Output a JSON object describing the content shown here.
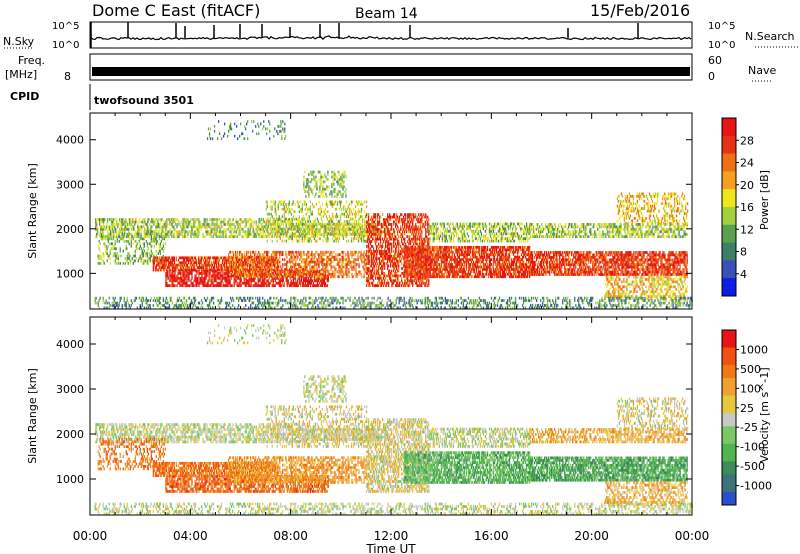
{
  "header": {
    "station": "Dome C East (fitACF)",
    "beam": "Beam 14",
    "date": "15/Feb/2016"
  },
  "noise_panel": {
    "label_left": "N.Sky",
    "label_right": "N.Search",
    "ticks_left": [
      "10^5",
      "10^0"
    ],
    "ticks_right": [
      "10^5",
      "10^0"
    ]
  },
  "freq_panel": {
    "label_line1": "Freq.",
    "label_line2": "[MHz]",
    "tick_left": "8",
    "ticks_right": [
      "60",
      "0"
    ],
    "label_right": "Nave"
  },
  "cpid": {
    "label": "CPID",
    "value": "twofsound 3501"
  },
  "colors": {
    "power": [
      "#0a1ee6",
      "#3a4fb8",
      "#3c7f67",
      "#5aa050",
      "#a0d23c",
      "#f0e61e",
      "#f5a020",
      "#f06e14",
      "#e63214",
      "#e61414"
    ],
    "velocity": [
      "#2850c8",
      "#3c7378",
      "#3c8c5a",
      "#50b450",
      "#78c864",
      "#c8c8c8",
      "#e6c83c",
      "#f0a032",
      "#f07814",
      "#f05014",
      "#e61414"
    ]
  },
  "chart_data": [
    {
      "type": "heatmap",
      "name": "power-panel",
      "xlabel": "Time UT",
      "ylabel": "Slant Range [km]",
      "xlim_hours": [
        0,
        24
      ],
      "ylim_km": [
        200,
        4600
      ],
      "yticks": [
        "1000",
        "2000",
        "3000",
        "4000"
      ],
      "colorbar_label": "Power [dB]",
      "colorbar_ticks": [
        "4",
        "8",
        "12",
        "16",
        "20",
        "24",
        "28"
      ]
    },
    {
      "type": "heatmap",
      "name": "velocity-panel",
      "xlabel": "Time UT",
      "ylabel": "Slant Range [km]",
      "xlim_hours": [
        0,
        24
      ],
      "ylim_km": [
        200,
        4600
      ],
      "yticks": [
        "1000",
        "2000",
        "3000",
        "4000"
      ],
      "colorbar_label": "Velocity [m s^-1]",
      "colorbar_ticks": [
        "1000",
        "500",
        "100",
        "25",
        "-25",
        "-100",
        "-500",
        "-1000"
      ]
    }
  ],
  "time_axis": {
    "label": "Time UT",
    "ticks": [
      "00:00",
      "04:00",
      "08:00",
      "12:00",
      "16:00",
      "20:00",
      "00:00"
    ]
  }
}
